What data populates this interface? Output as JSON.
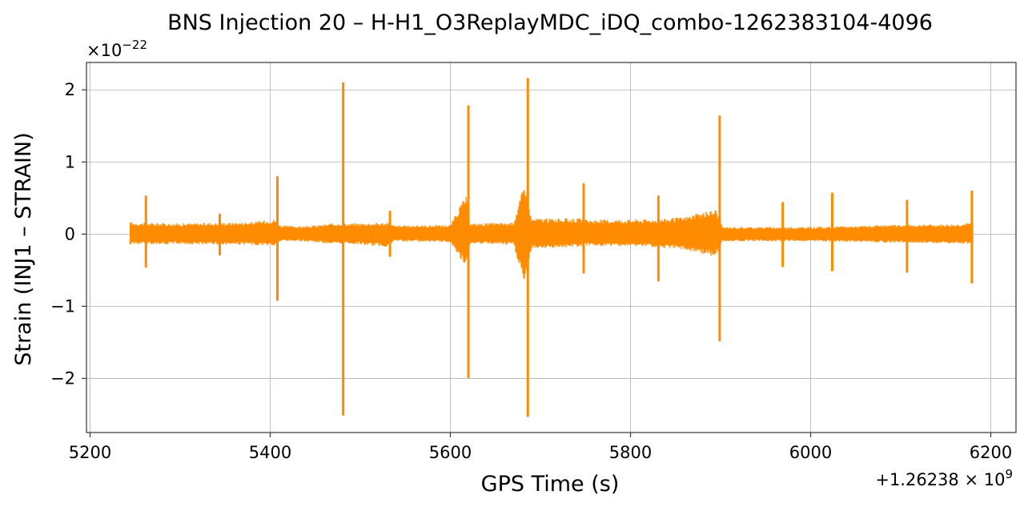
{
  "chart_data": {
    "type": "line",
    "title": "BNS Injection 20 – H-H1_O3ReplayMDC_iDQ_combo-1262383104-4096",
    "xlabel": "GPS Time (s)",
    "ylabel": "Strain (INJ1 – STRAIN)",
    "x_offset_label": "+1.26238 × 10",
    "x_offset_exponent": "9",
    "y_scale_label": "×10",
    "y_scale_exponent": "−22",
    "xlim": [
      5196,
      6228
    ],
    "ylim": [
      -2.75,
      2.38
    ],
    "x_ticks": [
      5200,
      5400,
      5600,
      5800,
      6000,
      6200
    ],
    "x_tick_labels": [
      "5200",
      "5400",
      "5600",
      "5800",
      "6000",
      "6200"
    ],
    "y_ticks": [
      -2,
      -1,
      0,
      1,
      2
    ],
    "y_tick_labels": [
      "−2",
      "−1",
      "0",
      "1",
      "2"
    ],
    "grid": true,
    "color": "#ff8c00",
    "series": [
      {
        "x_range": [
          5245,
          6180
        ],
        "background_envelope": [
          {
            "x": 5245,
            "hi": 0.16,
            "lo": -0.14
          },
          {
            "x": 5300,
            "hi": 0.15,
            "lo": -0.14
          },
          {
            "x": 5380,
            "hi": 0.17,
            "lo": -0.15
          },
          {
            "x": 5405,
            "hi": 0.21,
            "lo": -0.17
          },
          {
            "x": 5412,
            "hi": 0.12,
            "lo": -0.1
          },
          {
            "x": 5440,
            "hi": 0.11,
            "lo": -0.1
          },
          {
            "x": 5478,
            "hi": 0.16,
            "lo": -0.15
          },
          {
            "x": 5485,
            "hi": 0.15,
            "lo": -0.13
          },
          {
            "x": 5530,
            "hi": 0.16,
            "lo": -0.18
          },
          {
            "x": 5538,
            "hi": 0.12,
            "lo": -0.1
          },
          {
            "x": 5600,
            "hi": 0.13,
            "lo": -0.11
          },
          {
            "x": 5617,
            "hi": 0.55,
            "lo": -0.45
          },
          {
            "x": 5622,
            "hi": 0.15,
            "lo": -0.13
          },
          {
            "x": 5670,
            "hi": 0.16,
            "lo": -0.15
          },
          {
            "x": 5683,
            "hi": 0.75,
            "lo": -0.75
          },
          {
            "x": 5690,
            "hi": 0.22,
            "lo": -0.2
          },
          {
            "x": 5745,
            "hi": 0.22,
            "lo": -0.18
          },
          {
            "x": 5752,
            "hi": 0.2,
            "lo": -0.16
          },
          {
            "x": 5830,
            "hi": 0.21,
            "lo": -0.18
          },
          {
            "x": 5860,
            "hi": 0.24,
            "lo": -0.22
          },
          {
            "x": 5895,
            "hi": 0.35,
            "lo": -0.32
          },
          {
            "x": 5902,
            "hi": 0.1,
            "lo": -0.1
          },
          {
            "x": 6000,
            "hi": 0.1,
            "lo": -0.1
          },
          {
            "x": 6100,
            "hi": 0.13,
            "lo": -0.12
          },
          {
            "x": 6160,
            "hi": 0.14,
            "lo": -0.13
          },
          {
            "x": 6180,
            "hi": 0.16,
            "lo": -0.14
          }
        ],
        "spikes": [
          {
            "x": 5262,
            "max": 0.52,
            "min": -0.45
          },
          {
            "x": 5344,
            "max": 0.27,
            "min": -0.28
          },
          {
            "x": 5408,
            "max": 0.79,
            "min": -0.91
          },
          {
            "x": 5481,
            "max": 2.09,
            "min": -2.5
          },
          {
            "x": 5533,
            "max": 0.31,
            "min": -0.3
          },
          {
            "x": 5620,
            "max": 1.77,
            "min": -1.98
          },
          {
            "x": 5686,
            "max": 2.15,
            "min": -2.52
          },
          {
            "x": 5748,
            "max": 0.69,
            "min": -0.53
          },
          {
            "x": 5831,
            "max": 0.52,
            "min": -0.64
          },
          {
            "x": 5899,
            "max": 1.63,
            "min": -1.47
          },
          {
            "x": 5969,
            "max": 0.43,
            "min": -0.44
          },
          {
            "x": 6024,
            "max": 0.56,
            "min": -0.5
          },
          {
            "x": 6107,
            "max": 0.46,
            "min": -0.52
          },
          {
            "x": 6179,
            "max": 0.59,
            "min": -0.67
          }
        ]
      }
    ]
  }
}
